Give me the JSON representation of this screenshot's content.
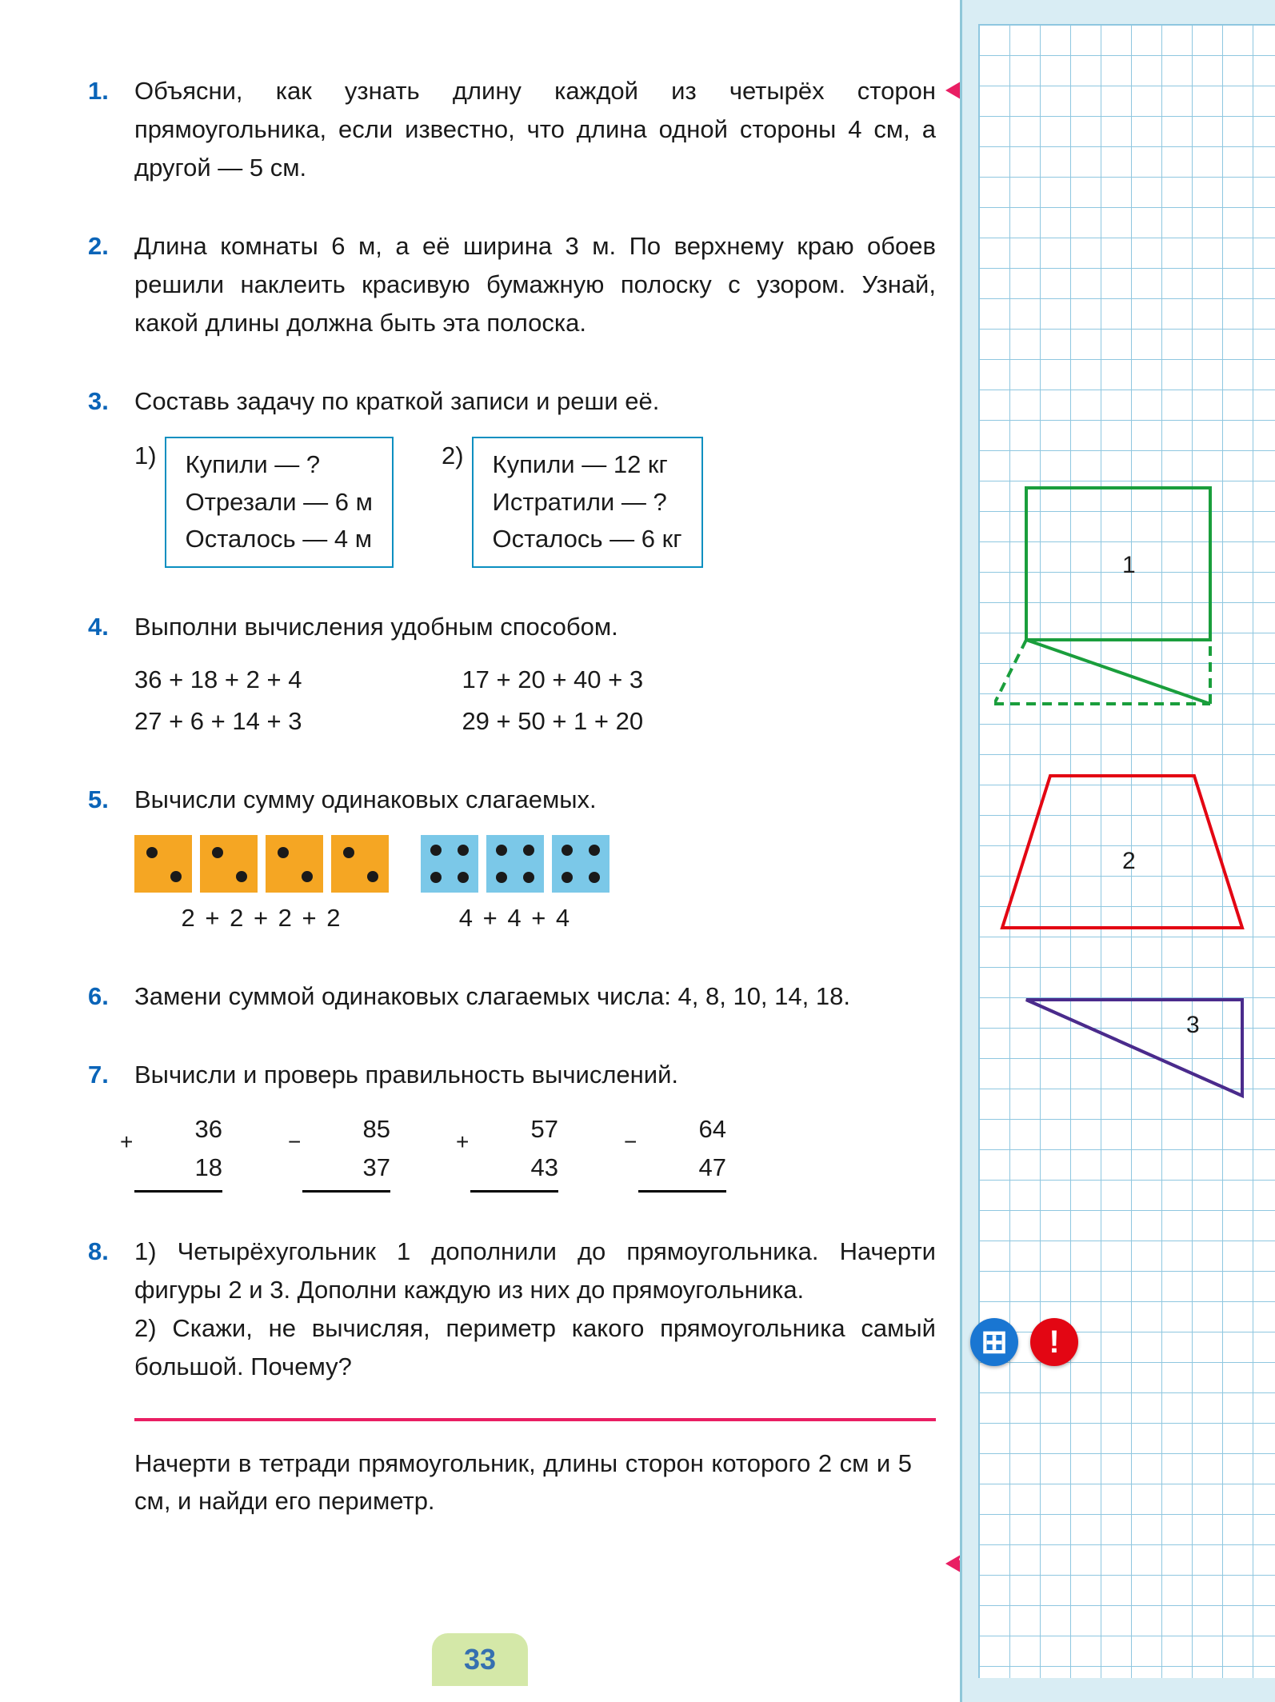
{
  "page_number": "33",
  "problems": {
    "p1": {
      "num": "1.",
      "text": "Объясни, как узнать длину каждой из четырёх сторон прямоугольника, если известно, что длина одной стороны 4 см, а другой — 5 см."
    },
    "p2": {
      "num": "2.",
      "text": "Длина комнаты 6 м, а её ширина 3 м. По верхнему краю обоев решили наклеить красивую бумажную полоску с узором. Узнай, какой длины должна быть эта полоска."
    },
    "p3": {
      "num": "3.",
      "text": "Составь задачу по краткой записи и реши её.",
      "boxes": [
        {
          "label": "1)",
          "lines": [
            "Купили — ?",
            "Отрезали — 6 м",
            "Осталось — 4 м"
          ]
        },
        {
          "label": "2)",
          "lines": [
            "Купили — 12 кг",
            "Истратили — ?",
            "Осталось — 6 кг"
          ]
        }
      ]
    },
    "p4": {
      "num": "4.",
      "text": "Выполни вычисления удобным способом.",
      "exprs": [
        [
          "36 + 18 + 2 + 4",
          "17 + 20 + 40 + 3"
        ],
        [
          "27 + 6 + 14 + 3",
          "29 + 50 + 1 + 20"
        ]
      ]
    },
    "p5": {
      "num": "5.",
      "text": "Вычисли сумму одинаковых слагаемых.",
      "groups": [
        {
          "color": "orange",
          "count": 4,
          "dots": 2,
          "expr": "2 + 2 + 2 + 2"
        },
        {
          "color": "blue",
          "count": 3,
          "dots": 4,
          "expr": "4 + 4 + 4"
        }
      ]
    },
    "p6": {
      "num": "6.",
      "text": "Замени суммой одинаковых слагаемых числа: 4, 8, 10, 14, 18."
    },
    "p7": {
      "num": "7.",
      "text": "Вычисли и проверь правильность вычислений.",
      "calcs": [
        {
          "sign": "+",
          "a": "36",
          "b": "18"
        },
        {
          "sign": "−",
          "a": "85",
          "b": "37"
        },
        {
          "sign": "+",
          "a": "57",
          "b": "43"
        },
        {
          "sign": "−",
          "a": "64",
          "b": "47"
        }
      ]
    },
    "p8": {
      "num": "8.",
      "text": "1) Четырёхугольник 1 дополнили до прямоугольника. Начерти фигуры 2 и 3. Дополни каждую из них до прямоугольника.\n2) Скажи, не вычисляя, периметр какого прямоугольника самый большой. Почему?"
    }
  },
  "footer_task": "Начерти в тетради прямоугольник, длины сторон которого 2 см и 5 см, и найди его периметр.",
  "sidebar": {
    "shapes": [
      {
        "label": "1",
        "type": "square_with_triangle",
        "color": "#1a9e3c",
        "dash_color": "#1a9e3c"
      },
      {
        "label": "2",
        "type": "trapezoid",
        "color": "#e30613"
      },
      {
        "label": "3",
        "type": "right_triangle",
        "color": "#4a2b8c"
      }
    ],
    "icons": {
      "grid": {
        "bg": "#1976d2",
        "symbol": "⊞"
      },
      "exclaim": {
        "bg": "#e30613",
        "symbol": "!"
      }
    }
  },
  "colors": {
    "problem_number": "#0a64b8",
    "box_border": "#0a8fc0",
    "hr": "#e91e63",
    "page_num_bg": "#d4e8a8",
    "page_num_color": "#3670b0",
    "sidebar_bg": "#d9edf4",
    "grid_line": "#8fc7e0",
    "domino_orange": "#f5a623",
    "domino_blue": "#7bc8e8"
  },
  "markers": {
    "question": "?"
  }
}
